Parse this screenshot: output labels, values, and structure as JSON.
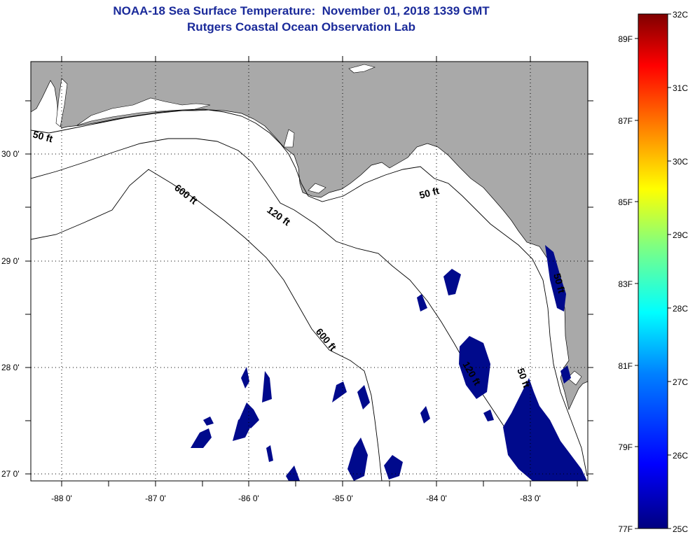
{
  "title": {
    "line1": "NOAA-18 Sea Surface Temperature:  November 01, 2018 1339 GMT",
    "line2": "Rutgers Coastal Ocean Observation Lab"
  },
  "map": {
    "lat_labels": [
      "30 0'",
      "29 0'",
      "28 0'",
      "27 0'"
    ],
    "lon_labels": [
      "-88 0'",
      "-87 0'",
      "-86 0'",
      "-85 0'",
      "-84 0'",
      "-83 0'"
    ],
    "contour_labels": [
      "50 ft",
      "600 ft",
      "120 ft",
      "50 ft",
      "600 ft",
      "120 ft",
      "50 ft",
      "50 ft"
    ],
    "colors": {
      "land": "#a9a9a9",
      "water": "#ffffff",
      "sst_pixels": "#000a8c"
    }
  },
  "colorbar": {
    "celsius": [
      "32C",
      "31C",
      "30C",
      "29C",
      "28C",
      "27C",
      "26C",
      "25C"
    ],
    "fahrenheit": [
      "89F",
      "87F",
      "85F",
      "83F",
      "81F",
      "79F",
      "77F"
    ],
    "range_c": [
      25,
      32
    ],
    "colors": [
      "#00007f",
      "#0000ff",
      "#0080ff",
      "#00ffff",
      "#80ff80",
      "#ffff00",
      "#ff8000",
      "#ff0000",
      "#7f0000"
    ]
  }
}
